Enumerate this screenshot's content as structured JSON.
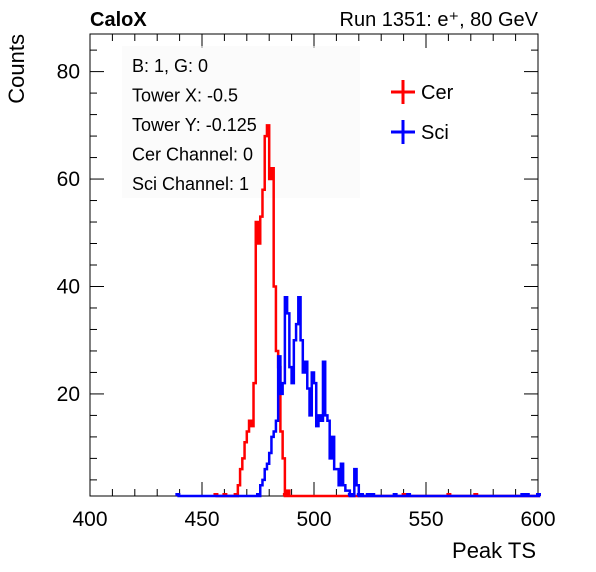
{
  "chart_data": {
    "type": "histogram",
    "title_left": "CaloX",
    "title_right": "Run 1351: e⁺, 80 GeV",
    "xlabel": "Peak TS",
    "ylabel": "Counts",
    "xlim": [
      400,
      600
    ],
    "ylim": [
      1,
      87
    ],
    "x_ticks": [
      400,
      450,
      500,
      550,
      600
    ],
    "y_ticks": [
      20,
      40,
      60,
      80
    ],
    "info_box": [
      "B: 1, G: 0",
      "Tower X: -0.5",
      "Tower Y: -0.125",
      "Cer Channel: 0",
      "Sci Channel: 1"
    ],
    "legend_position": "top-right",
    "series": [
      {
        "name": "Cer",
        "color": "#ff0000",
        "points": [
          [
            456,
            1
          ],
          [
            460,
            1
          ],
          [
            465,
            1
          ],
          [
            466,
            3
          ],
          [
            467,
            6
          ],
          [
            468,
            8
          ],
          [
            469,
            11
          ],
          [
            470,
            13
          ],
          [
            471,
            15
          ],
          [
            472,
            14
          ],
          [
            473,
            22
          ],
          [
            474,
            52
          ],
          [
            475,
            48
          ],
          [
            476,
            53
          ],
          [
            477,
            58
          ],
          [
            478,
            68
          ],
          [
            479,
            70
          ],
          [
            480,
            60
          ],
          [
            481,
            62
          ],
          [
            482,
            40
          ],
          [
            483,
            28
          ],
          [
            484,
            25
          ],
          [
            485,
            13
          ],
          [
            486,
            8
          ],
          [
            487,
            1
          ],
          [
            488,
            2
          ],
          [
            540,
            1
          ],
          [
            560,
            1
          ],
          [
            572,
            1
          ],
          [
            600,
            1
          ]
        ]
      },
      {
        "name": "Sci",
        "color": "#0000ff",
        "points": [
          [
            439,
            1
          ],
          [
            475,
            1
          ],
          [
            476,
            3
          ],
          [
            477,
            4
          ],
          [
            478,
            6
          ],
          [
            479,
            7
          ],
          [
            480,
            9
          ],
          [
            481,
            12
          ],
          [
            482,
            13
          ],
          [
            483,
            15
          ],
          [
            484,
            27
          ],
          [
            485,
            20
          ],
          [
            486,
            22
          ],
          [
            487,
            38
          ],
          [
            488,
            35
          ],
          [
            489,
            25
          ],
          [
            490,
            22
          ],
          [
            491,
            30
          ],
          [
            492,
            33
          ],
          [
            493,
            38
          ],
          [
            494,
            30
          ],
          [
            495,
            24
          ],
          [
            496,
            26
          ],
          [
            497,
            21
          ],
          [
            498,
            16
          ],
          [
            499,
            24
          ],
          [
            500,
            22
          ],
          [
            501,
            14
          ],
          [
            502,
            16
          ],
          [
            503,
            15
          ],
          [
            504,
            26
          ],
          [
            505,
            16
          ],
          [
            506,
            15
          ],
          [
            507,
            8
          ],
          [
            508,
            12
          ],
          [
            509,
            6
          ],
          [
            510,
            6
          ],
          [
            511,
            3
          ],
          [
            512,
            7
          ],
          [
            513,
            3
          ],
          [
            514,
            2
          ],
          [
            515,
            2
          ],
          [
            516,
            1
          ],
          [
            517,
            1
          ],
          [
            518,
            6
          ],
          [
            519,
            3
          ],
          [
            520,
            1
          ],
          [
            521,
            1
          ],
          [
            524,
            1
          ],
          [
            526,
            1
          ],
          [
            536,
            1
          ],
          [
            542,
            1
          ],
          [
            593,
            1
          ],
          [
            595,
            1
          ],
          [
            600,
            1
          ]
        ]
      }
    ]
  }
}
